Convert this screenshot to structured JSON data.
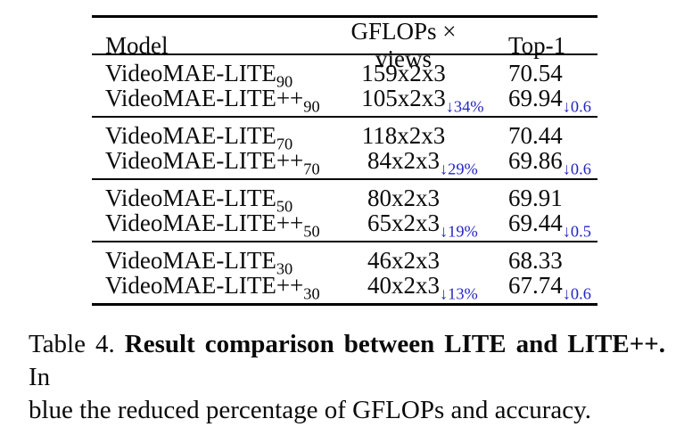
{
  "colors": {
    "highlight_blue": "#2424c8",
    "text": "#0a0a0a",
    "background": "#ffffff"
  },
  "table": {
    "headers": [
      "Model",
      "GFLOPs × views",
      "Top-1"
    ],
    "groups": [
      {
        "rows": [
          {
            "model": "VideoMAE-LITE",
            "model_sub": "90",
            "gflops": "159x2x3",
            "gflops_drop": "",
            "top1": "70.54",
            "top1_drop": ""
          },
          {
            "model": "VideoMAE-LITE++",
            "model_sub": "90",
            "gflops": "105x2x3",
            "gflops_drop": "↓34%",
            "top1": "69.94",
            "top1_drop": "↓0.6"
          }
        ]
      },
      {
        "rows": [
          {
            "model": "VideoMAE-LITE",
            "model_sub": "70",
            "gflops": "118x2x3",
            "gflops_drop": "",
            "top1": "70.44",
            "top1_drop": ""
          },
          {
            "model": "VideoMAE-LITE++",
            "model_sub": "70",
            "gflops": "84x2x3",
            "gflops_drop": "↓29%",
            "top1": "69.86",
            "top1_drop": "↓0.6"
          }
        ]
      },
      {
        "rows": [
          {
            "model": "VideoMAE-LITE",
            "model_sub": "50",
            "gflops": "80x2x3",
            "gflops_drop": "",
            "top1": "69.91",
            "top1_drop": ""
          },
          {
            "model": "VideoMAE-LITE++",
            "model_sub": "50",
            "gflops": "65x2x3",
            "gflops_drop": "↓19%",
            "top1": "69.44",
            "top1_drop": "↓0.5"
          }
        ]
      },
      {
        "rows": [
          {
            "model": "VideoMAE-LITE",
            "model_sub": "30",
            "gflops": "46x2x3",
            "gflops_drop": "",
            "top1": "68.33",
            "top1_drop": ""
          },
          {
            "model": "VideoMAE-LITE++",
            "model_sub": "30",
            "gflops": "40x2x3",
            "gflops_drop": "↓13%",
            "top1": "67.74",
            "top1_drop": "↓0.6"
          }
        ]
      }
    ]
  },
  "caption": {
    "label": "Table 4.",
    "title_bold": "Result comparison between LITE and LITE++.",
    "line1_tail": "In",
    "line2": "blue the reduced percentage of GFLOPs and accuracy."
  }
}
